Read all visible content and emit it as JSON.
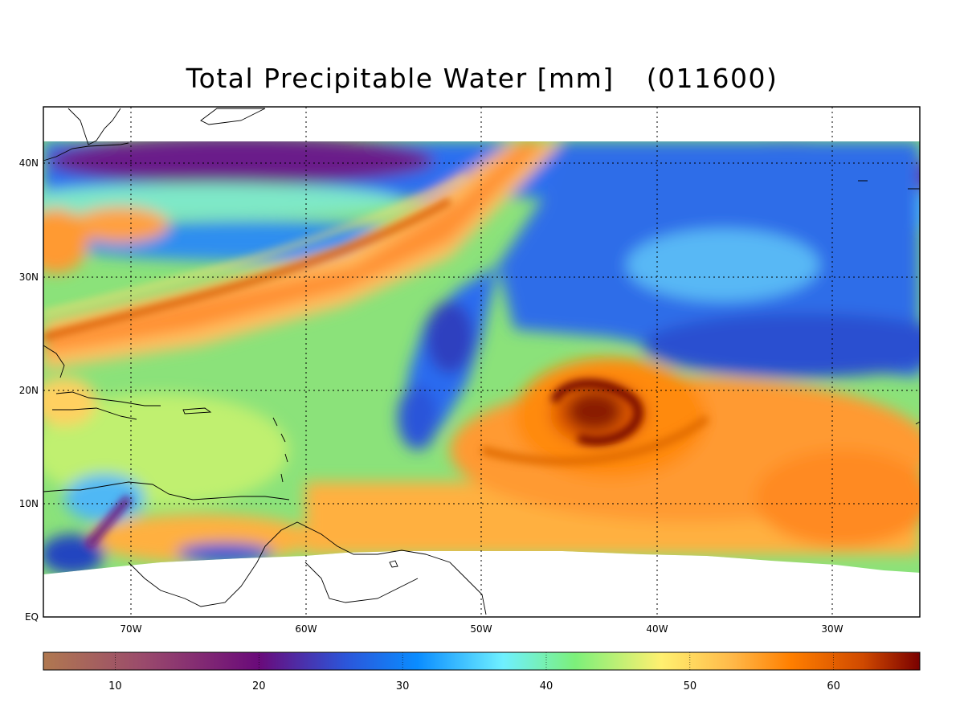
{
  "title": {
    "text": "Total Precipitable Water [mm]",
    "date_code": "(011600)"
  },
  "map": {
    "region": "Tropical Atlantic",
    "lat_ticks": [
      "40N",
      "30N",
      "20N",
      "10N",
      "EQ"
    ],
    "lon_ticks": [
      "70W",
      "60W",
      "50W",
      "40W",
      "30W"
    ],
    "gridlines": "dotted",
    "feature": "cyclone-centered swirl of high moisture"
  },
  "colorbar": {
    "ticks": [
      "10",
      "20",
      "30",
      "40",
      "50",
      "60"
    ],
    "stops": [
      {
        "v": 5,
        "c": "#b07850"
      },
      {
        "v": 12,
        "c": "#9a4a6c"
      },
      {
        "v": 20,
        "c": "#6a0a7a"
      },
      {
        "v": 26,
        "c": "#2c55d9"
      },
      {
        "v": 31,
        "c": "#0a8cff"
      },
      {
        "v": 37,
        "c": "#6ff0ff"
      },
      {
        "v": 42,
        "c": "#7cf07a"
      },
      {
        "v": 48,
        "c": "#fff070"
      },
      {
        "v": 53,
        "c": "#ffb848"
      },
      {
        "v": 57,
        "c": "#ff7f00"
      },
      {
        "v": 62,
        "c": "#d04a00"
      },
      {
        "v": 66,
        "c": "#7a0000"
      }
    ],
    "min": 5,
    "max": 66
  }
}
